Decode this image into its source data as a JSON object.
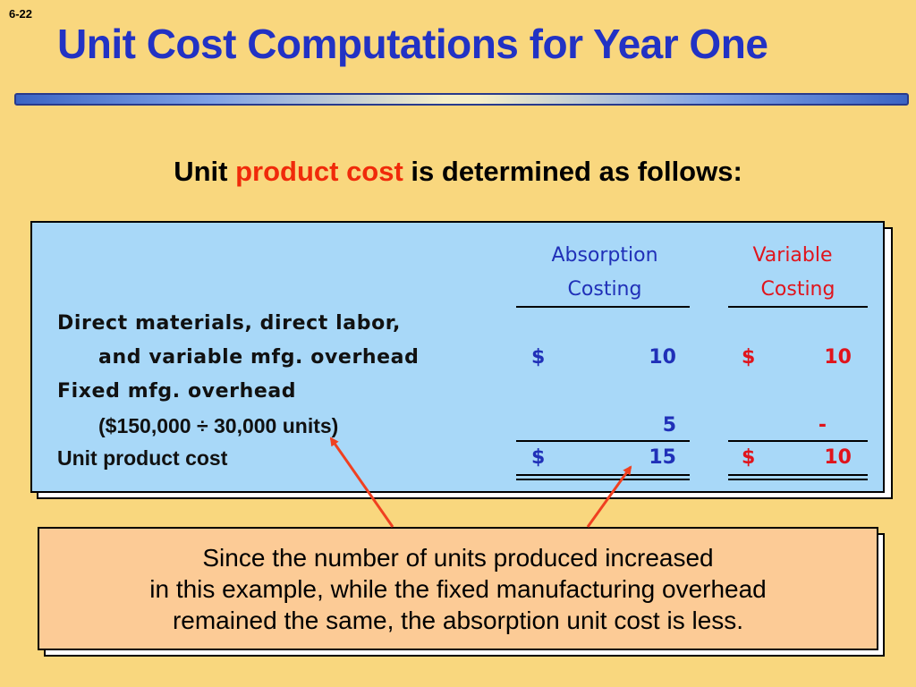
{
  "slide_number": "6-22",
  "title": "Unit Cost Computations for Year One",
  "subtitle": {
    "before": "Unit ",
    "highlight": "product cost",
    "after": " is determined as follows:"
  },
  "table": {
    "header": {
      "absorption_line1": "Absorption",
      "absorption_line2": "Costing",
      "variable_line1": "Variable",
      "variable_line2": "Costing"
    },
    "rows": [
      {
        "label_line1": "Direct materials, direct labor,",
        "label_line2": "and variable mfg. overhead",
        "abs_sign": "$",
        "abs_value": "10",
        "var_sign": "$",
        "var_value": "10"
      },
      {
        "label_line1": "Fixed mfg. overhead",
        "label_line2": "($150,000 ÷ 30,000 units)",
        "abs_value": "5",
        "var_value": "-"
      },
      {
        "label": "Unit product cost",
        "abs_sign": "$",
        "abs_value": "15",
        "var_sign": "$",
        "var_value": "10"
      }
    ]
  },
  "note": {
    "line1": "Since the number of units produced increased",
    "line2": "in this example, while the fixed manufacturing overhead",
    "line3": "remained the same, the absorption unit cost is less."
  },
  "colors": {
    "background": "#f9d77e",
    "title": "#2232c4",
    "highlight": "#f02a0a",
    "panel": "#a8d8f8",
    "absorption": "#2030b8",
    "variable": "#e0141c",
    "note": "#fccb96",
    "arrow": "#f04020"
  }
}
